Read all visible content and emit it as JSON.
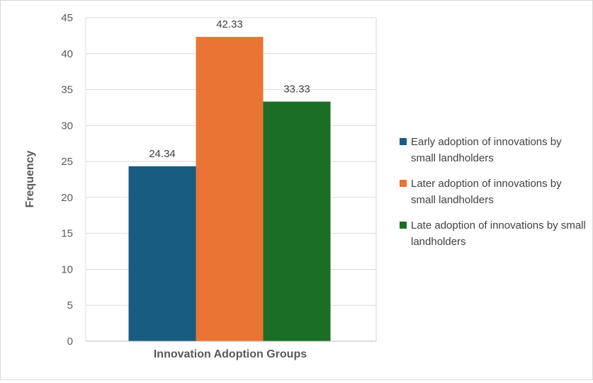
{
  "chart_data": {
    "type": "bar",
    "categories": [
      "Innovation Adoption Groups"
    ],
    "series": [
      {
        "name": "Early adoption of innovations by small landholders",
        "values": [
          24.34
        ],
        "color": "#185C81",
        "label": "24.34"
      },
      {
        "name": "Later adoption of innovations by small landholders",
        "values": [
          42.33
        ],
        "color": "#E97433",
        "label": "42.33"
      },
      {
        "name": "Late adoption of innovations by small landholders",
        "values": [
          33.33
        ],
        "color": "#1A6E26",
        "label": "33.33"
      }
    ],
    "title": "",
    "xlabel": "Innovation Adoption Groups",
    "ylabel": "Frequency",
    "ylim": [
      0,
      45
    ],
    "yticks": [
      "0",
      "5",
      "10",
      "15",
      "20",
      "25",
      "30",
      "35",
      "40",
      "45"
    ],
    "grid": true,
    "legend": "right"
  }
}
